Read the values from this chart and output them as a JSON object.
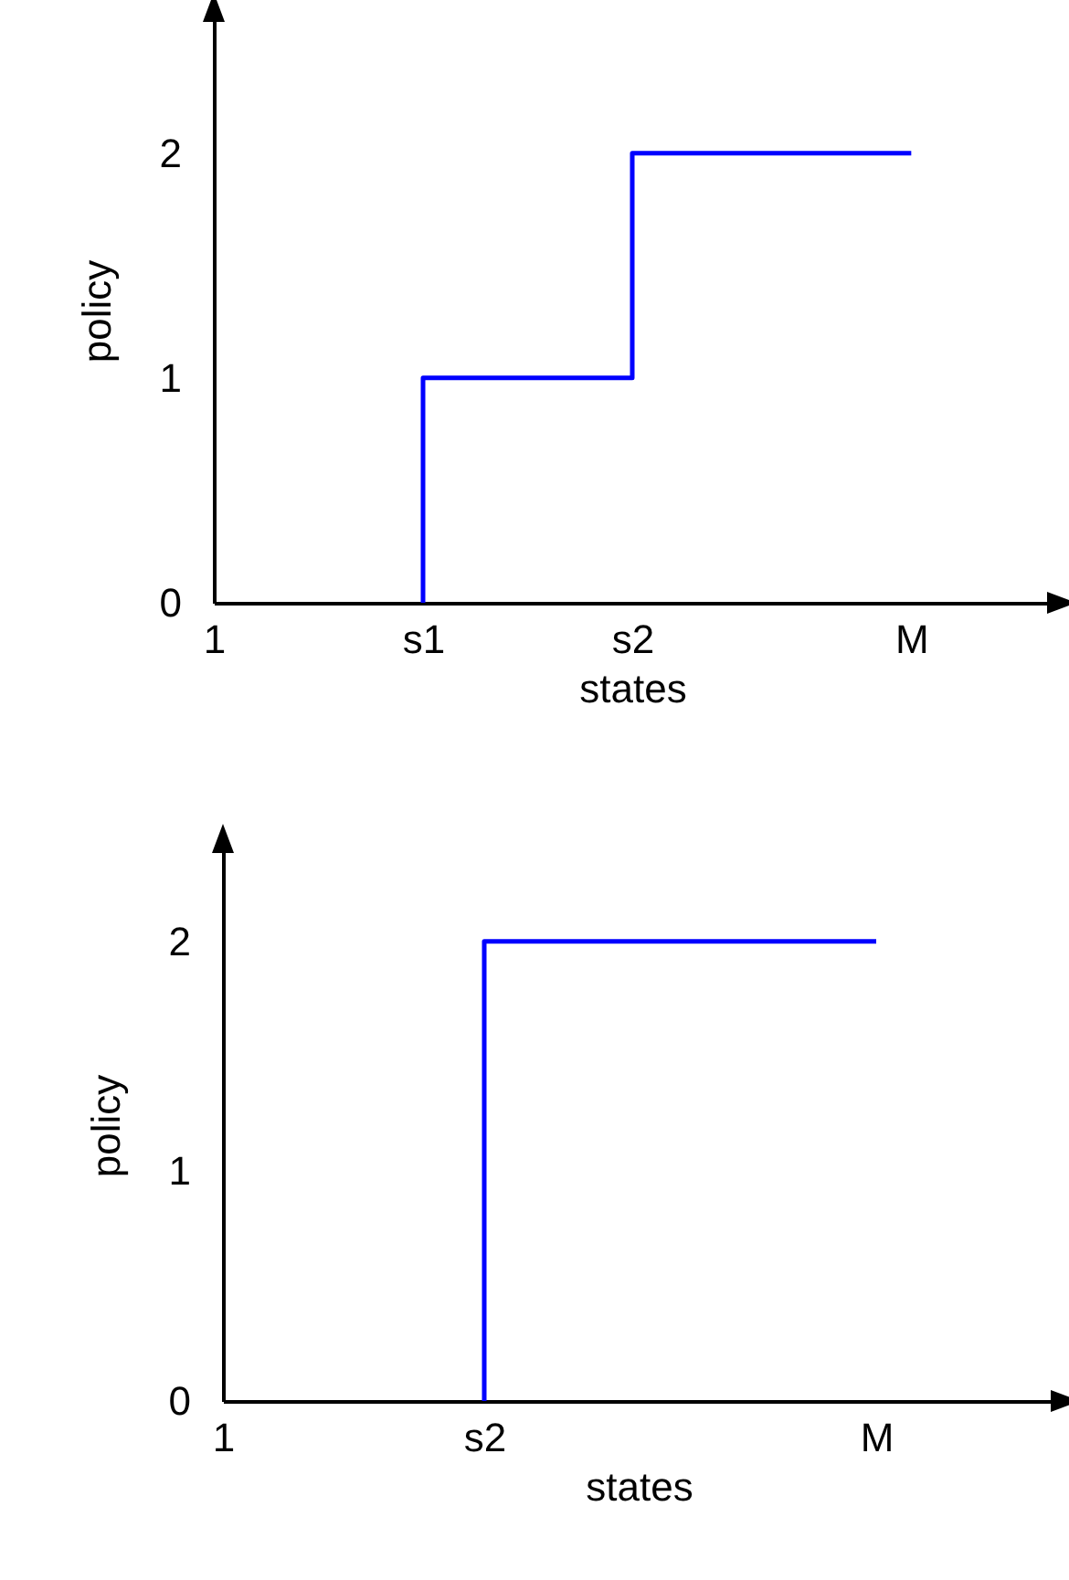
{
  "chart_data": [
    {
      "type": "step",
      "xlabel": "states",
      "ylabel": "policy",
      "categories": [
        "1",
        null,
        null,
        "s1",
        null,
        null,
        "s2",
        null,
        null,
        null,
        "M"
      ],
      "values": [
        null,
        null,
        null,
        0,
        1,
        1,
        1,
        2,
        2,
        2,
        2
      ],
      "color": "#0000ff",
      "ylim": [
        0,
        2.6
      ],
      "yticks": [
        0,
        1,
        2
      ],
      "grid": false
    },
    {
      "type": "step",
      "xlabel": "states",
      "ylabel": "policy",
      "categories": [
        "1",
        null,
        "s2",
        null,
        null,
        "M"
      ],
      "values": [
        null,
        null,
        0,
        2,
        2,
        2
      ],
      "color": "#0000ff",
      "ylim": [
        0,
        2.4
      ],
      "yticks": [
        0,
        1,
        2
      ],
      "grid": false
    }
  ]
}
